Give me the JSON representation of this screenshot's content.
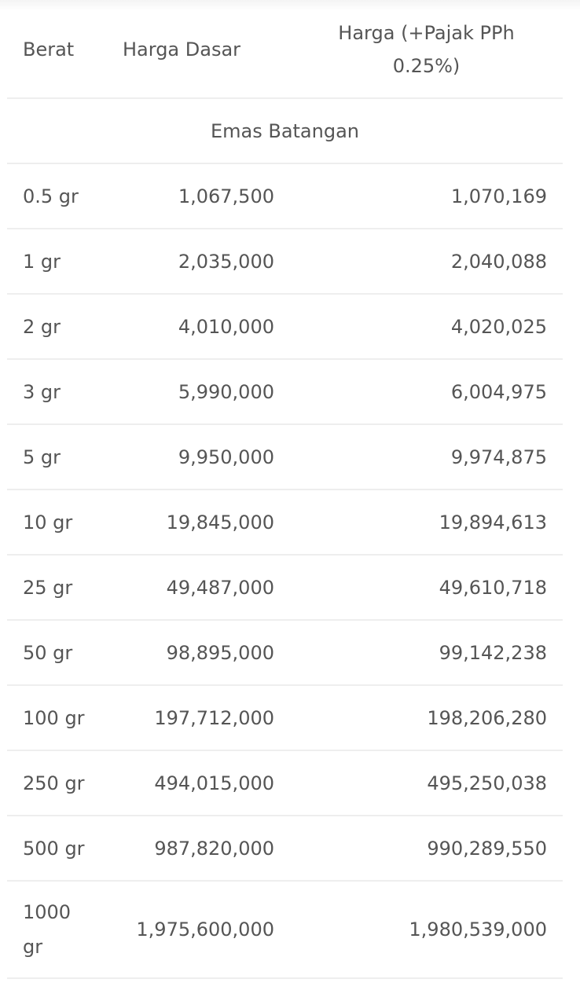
{
  "table": {
    "headers": {
      "weight": "Berat",
      "base_price": "Harga Dasar",
      "taxed_price": "Harga (+Pajak PPh 0.25%)"
    },
    "section_label": "Emas Batangan",
    "rows": [
      {
        "weight": "0.5 gr",
        "base": "1,067,500",
        "taxed": "1,070,169"
      },
      {
        "weight": "1 gr",
        "base": "2,035,000",
        "taxed": "2,040,088"
      },
      {
        "weight": "2 gr",
        "base": "4,010,000",
        "taxed": "4,020,025"
      },
      {
        "weight": "3 gr",
        "base": "5,990,000",
        "taxed": "6,004,975"
      },
      {
        "weight": "5 gr",
        "base": "9,950,000",
        "taxed": "9,974,875"
      },
      {
        "weight": "10 gr",
        "base": "19,845,000",
        "taxed": "19,894,613"
      },
      {
        "weight": "25 gr",
        "base": "49,487,000",
        "taxed": "49,610,718"
      },
      {
        "weight": "50 gr",
        "base": "98,895,000",
        "taxed": "99,142,238"
      },
      {
        "weight": "100 gr",
        "base": "197,712,000",
        "taxed": "198,206,280"
      },
      {
        "weight": "250 gr",
        "base": "494,015,000",
        "taxed": "495,250,038"
      },
      {
        "weight": "500 gr",
        "base": "987,820,000",
        "taxed": "990,289,550"
      },
      {
        "weight": "1000 gr",
        "base": "1,975,600,000",
        "taxed": "1,980,539,000"
      }
    ]
  }
}
